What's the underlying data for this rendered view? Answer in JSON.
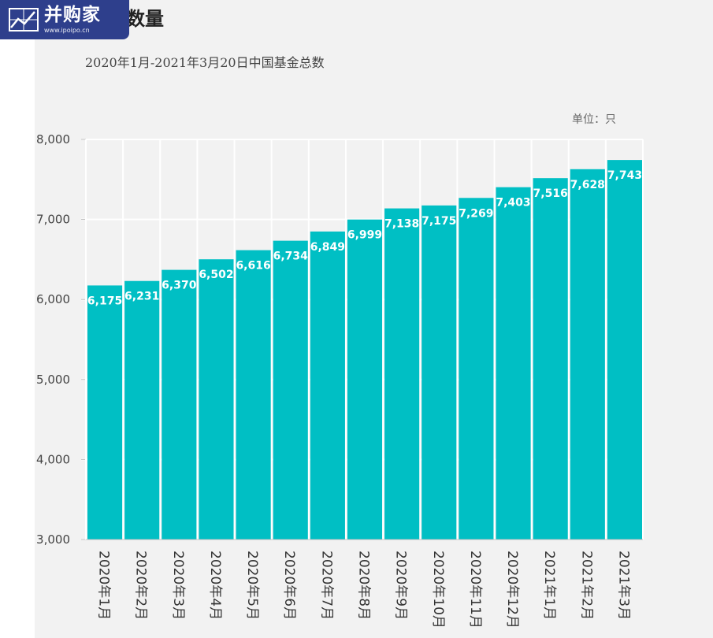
{
  "logo": {
    "name": "并购家",
    "url": "www.ipoipo.cn"
  },
  "chart_data": {
    "type": "bar",
    "title": "基金数量",
    "subtitle": "2020年1月-2021年3月20日中国基金总数",
    "unit_label": "单位：只",
    "categories": [
      "2020年1月",
      "2020年2月",
      "2020年3月",
      "2020年4月",
      "2020年5月",
      "2020年6月",
      "2020年7月",
      "2020年8月",
      "2020年9月",
      "2020年10月",
      "2020年11月",
      "2020年12月",
      "2021年1月",
      "2021年2月",
      "2021年3月"
    ],
    "values": [
      6175,
      6231,
      6370,
      6502,
      6616,
      6734,
      6849,
      6999,
      7138,
      7175,
      7269,
      7403,
      7516,
      7628,
      7743
    ],
    "value_labels": [
      "6,175",
      "6,231",
      "6,370",
      "6,502",
      "6,616",
      "6,734",
      "6,849",
      "6,999",
      "7,138",
      "7,175",
      "7,269",
      "7,403",
      "7,516",
      "7,628",
      "7,743"
    ],
    "ylim": [
      3000,
      8000
    ],
    "yticks": [
      3000,
      4000,
      5000,
      6000,
      7000,
      8000
    ],
    "ytick_labels": [
      "3,000",
      "4,000",
      "5,000",
      "6,000",
      "7,000",
      "8,000"
    ],
    "bar_color": "#00bfc4",
    "grid": true
  }
}
